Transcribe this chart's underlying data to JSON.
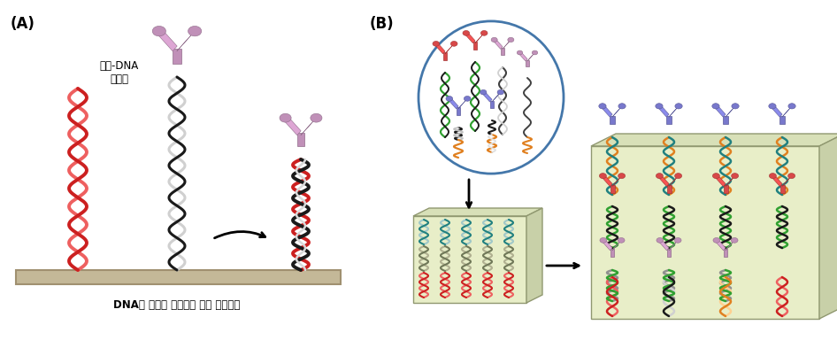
{
  "label_A": "(A)",
  "label_B": "(B)",
  "bottom_text": "DNA의 상보적 결합으로 칩에 항체고정",
  "antibody_label": "항체-DNA\n복합체",
  "colors": {
    "pink_antibody": "#C090B8",
    "pink_antibody_dark": "#A07898",
    "red_antibody": "#D84848",
    "blue_antibody": "#7878CC",
    "chip_bg": "#E8EEC8",
    "chip_top": "#D8E0B8",
    "chip_right": "#C8D0A8",
    "chip_bar": "#C8B898",
    "ellipse_circle": "#4477AA",
    "black_dna": "#1A1A1A",
    "red_dna": "#CC2020",
    "red_dna2": "#EE6060",
    "white_dna": "#E8E8E8",
    "green_dna": "#30A030",
    "blue_dna": "#3050CC",
    "orange_dna": "#E08020",
    "gray_dna": "#A0A0A0",
    "teal_dna": "#208080"
  },
  "bg_color": "#FFFFFF"
}
